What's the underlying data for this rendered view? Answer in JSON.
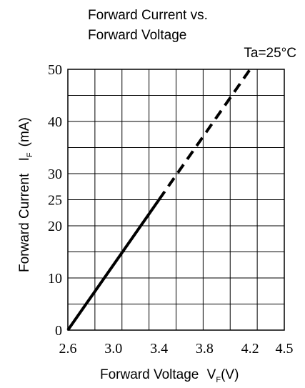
{
  "chart_data": {
    "type": "line",
    "title_lines": [
      "Forward Current vs.",
      "Forward Voltage"
    ],
    "condition": "Ta=25°C",
    "xlabel": {
      "main": "Forward Voltage",
      "symbol": "V",
      "sub": "F",
      "unit": "(V)"
    },
    "ylabel": {
      "main": "Forward Current",
      "symbol": "I",
      "sub": "F",
      "unit": "(mA)"
    },
    "xlim": [
      2.6,
      4.5
    ],
    "ylim": [
      0,
      50
    ],
    "x_ticks": [
      2.6,
      3.0,
      3.4,
      3.8,
      4.2,
      4.5
    ],
    "x_tick_labels": [
      "2.6",
      "3.0",
      "3.4",
      "3.8",
      "4.2",
      "4.5"
    ],
    "y_ticks": [
      0,
      10,
      20,
      25,
      30,
      40,
      50
    ],
    "y_tick_labels": [
      "0",
      "10",
      "20",
      "25",
      "30",
      "40",
      "50"
    ],
    "grid": true,
    "series": [
      {
        "style": "solid",
        "x": [
          2.6,
          3.4
        ],
        "y": [
          0,
          25
        ]
      },
      {
        "style": "dashed",
        "x": [
          3.4,
          4.2
        ],
        "y": [
          25,
          50
        ]
      }
    ]
  }
}
